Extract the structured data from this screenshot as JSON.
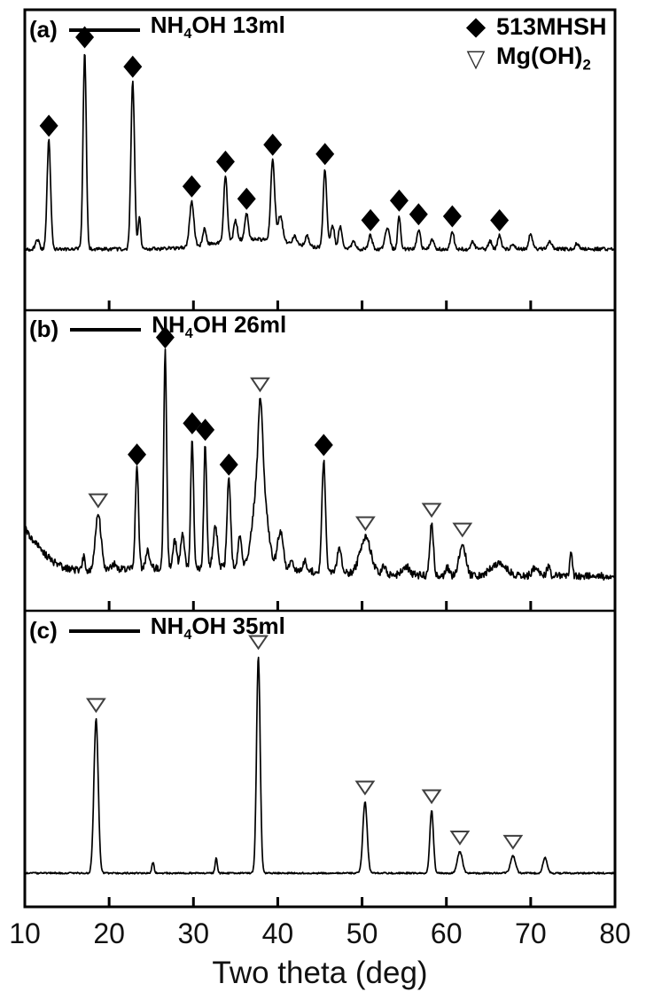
{
  "figure": {
    "xaxis": {
      "label": "Two theta (deg)",
      "ticks": [
        10,
        20,
        30,
        40,
        50,
        60,
        70,
        80
      ],
      "range": [
        10,
        80
      ]
    },
    "legend": {
      "items": [
        {
          "marker": "diamond-filled",
          "glyph": "◆",
          "label": "513MHSH",
          "label_sub": ""
        },
        {
          "marker": "triangle-down-open",
          "glyph": "▽",
          "label": "Mg(OH)",
          "label_sub": "2"
        }
      ]
    },
    "panels": [
      {
        "id": "a",
        "tag": "(a)",
        "series_pre": "NH",
        "series_sub": "4",
        "series_post": "OH 13ml"
      },
      {
        "id": "b",
        "tag": "(b)",
        "series_pre": "NH",
        "series_sub": "4",
        "series_post": "OH 26ml"
      },
      {
        "id": "c",
        "tag": "(c)",
        "series_pre": "NH",
        "series_sub": "4",
        "series_post": "OH 35ml"
      }
    ]
  },
  "chart_data": [
    {
      "type": "line",
      "panel": "a",
      "label": "(a)",
      "series_name": "NH4OH 13ml",
      "xlim": [
        10,
        80
      ],
      "marker_codes": {
        "d": "513MHSH (filled diamond)",
        "t": "Mg(OH)2 (open down-triangle)"
      },
      "peaks": [
        {
          "x": 11.5,
          "i": 5
        },
        {
          "x": 12.85,
          "i": 55,
          "m": "d"
        },
        {
          "x": 17.1,
          "i": 100,
          "m": "d",
          "w": 0.45
        },
        {
          "x": 22.8,
          "i": 85,
          "m": "d"
        },
        {
          "x": 23.6,
          "i": 16,
          "w": 0.35
        },
        {
          "x": 29.8,
          "i": 23,
          "m": "d",
          "w": 0.6
        },
        {
          "x": 31.3,
          "i": 8
        },
        {
          "x": 33.8,
          "i": 33,
          "m": "d"
        },
        {
          "x": 35.0,
          "i": 10
        },
        {
          "x": 36.3,
          "i": 13,
          "m": "d"
        },
        {
          "x": 39.4,
          "i": 41,
          "m": "d",
          "w": 0.55
        },
        {
          "x": 40.3,
          "i": 13,
          "w": 0.7
        },
        {
          "x": 42.0,
          "i": 4
        },
        {
          "x": 43.5,
          "i": 5
        },
        {
          "x": 45.6,
          "i": 40,
          "m": "d"
        },
        {
          "x": 46.5,
          "i": 12
        },
        {
          "x": 47.4,
          "i": 11
        },
        {
          "x": 49.0,
          "i": 4
        },
        {
          "x": 51.0,
          "i": 7,
          "m": "d"
        },
        {
          "x": 53.0,
          "i": 11,
          "w": 0.6
        },
        {
          "x": 54.4,
          "i": 17,
          "m": "d",
          "w": 0.4
        },
        {
          "x": 56.7,
          "i": 10,
          "m": "d"
        },
        {
          "x": 58.3,
          "i": 5
        },
        {
          "x": 60.7,
          "i": 9,
          "m": "d"
        },
        {
          "x": 63.1,
          "i": 4
        },
        {
          "x": 65.2,
          "i": 4
        },
        {
          "x": 66.3,
          "i": 7,
          "m": "d"
        },
        {
          "x": 67.9,
          "i": 3
        },
        {
          "x": 70.0,
          "i": 8
        },
        {
          "x": 72.3,
          "i": 4
        },
        {
          "x": 75.5,
          "i": 3
        }
      ],
      "baseline_humps": [
        {
          "x": 37,
          "i": 5,
          "w": 10
        }
      ]
    },
    {
      "type": "line",
      "panel": "b",
      "label": "(b)",
      "series_name": "NH4OH 26ml",
      "xlim": [
        10,
        80
      ],
      "marker_codes": {
        "d": "513MHSH (filled diamond)",
        "t": "Mg(OH)2 (open down-triangle)"
      },
      "peaks": [
        {
          "x": 17.0,
          "i": 7,
          "w": 0.35
        },
        {
          "x": 18.7,
          "i": 26,
          "m": "t",
          "w": 0.8
        },
        {
          "x": 20.5,
          "i": 3
        },
        {
          "x": 23.3,
          "i": 46,
          "m": "d",
          "w": 0.45
        },
        {
          "x": 24.6,
          "i": 8
        },
        {
          "x": 26.65,
          "i": 100,
          "m": "d",
          "w": 0.4
        },
        {
          "x": 27.8,
          "i": 13
        },
        {
          "x": 28.7,
          "i": 15
        },
        {
          "x": 29.85,
          "i": 60,
          "m": "d",
          "w": 0.4
        },
        {
          "x": 31.4,
          "i": 57,
          "m": "d",
          "w": 0.4
        },
        {
          "x": 32.6,
          "i": 19,
          "w": 0.6
        },
        {
          "x": 34.2,
          "i": 41,
          "m": "d",
          "w": 0.5
        },
        {
          "x": 35.5,
          "i": 14
        },
        {
          "x": 37.9,
          "i": 49,
          "m": "t",
          "w": 1.7
        },
        {
          "x": 37.95,
          "i": 31,
          "w": 0.55
        },
        {
          "x": 40.3,
          "i": 18,
          "w": 0.8
        },
        {
          "x": 41.6,
          "i": 6
        },
        {
          "x": 43.2,
          "i": 5
        },
        {
          "x": 45.45,
          "i": 52,
          "m": "d",
          "w": 0.5
        },
        {
          "x": 47.3,
          "i": 11,
          "w": 0.6
        },
        {
          "x": 50.4,
          "i": 17,
          "m": "t",
          "w": 1.5
        },
        {
          "x": 52.6,
          "i": 4
        },
        {
          "x": 55.2,
          "i": 4,
          "w": 1.0
        },
        {
          "x": 58.25,
          "i": 24,
          "m": "t",
          "w": 0.5
        },
        {
          "x": 60.1,
          "i": 4
        },
        {
          "x": 61.9,
          "i": 15,
          "m": "t",
          "w": 0.9
        },
        {
          "x": 66.2,
          "i": 6,
          "w": 2.2
        },
        {
          "x": 70.6,
          "i": 4,
          "w": 1.0
        },
        {
          "x": 72.1,
          "i": 4
        },
        {
          "x": 74.8,
          "i": 11,
          "w": 0.35
        }
      ],
      "baseline_humps": [
        {
          "x": 8.0,
          "i": 26,
          "w": 7
        },
        {
          "x": 30,
          "i": 4,
          "w": 30
        }
      ]
    },
    {
      "type": "line",
      "panel": "c",
      "label": "(c)",
      "series_name": "NH4OH 35ml",
      "xlim": [
        10,
        80
      ],
      "marker_codes": {
        "d": "513MHSH (filled diamond)",
        "t": "Mg(OH)2 (open down-triangle)"
      },
      "peaks": [
        {
          "x": 18.45,
          "i": 71,
          "m": "t",
          "w": 0.6
        },
        {
          "x": 25.2,
          "i": 5,
          "w": 0.3
        },
        {
          "x": 32.7,
          "i": 7,
          "w": 0.3
        },
        {
          "x": 37.7,
          "i": 100,
          "m": "t",
          "w": 0.5
        },
        {
          "x": 50.35,
          "i": 33,
          "m": "t",
          "w": 0.6
        },
        {
          "x": 58.25,
          "i": 29,
          "m": "t",
          "w": 0.5
        },
        {
          "x": 61.6,
          "i": 10,
          "m": "t",
          "w": 0.7
        },
        {
          "x": 67.9,
          "i": 8,
          "m": "t",
          "w": 0.7
        },
        {
          "x": 71.7,
          "i": 7,
          "w": 0.6
        }
      ],
      "baseline_humps": []
    }
  ]
}
